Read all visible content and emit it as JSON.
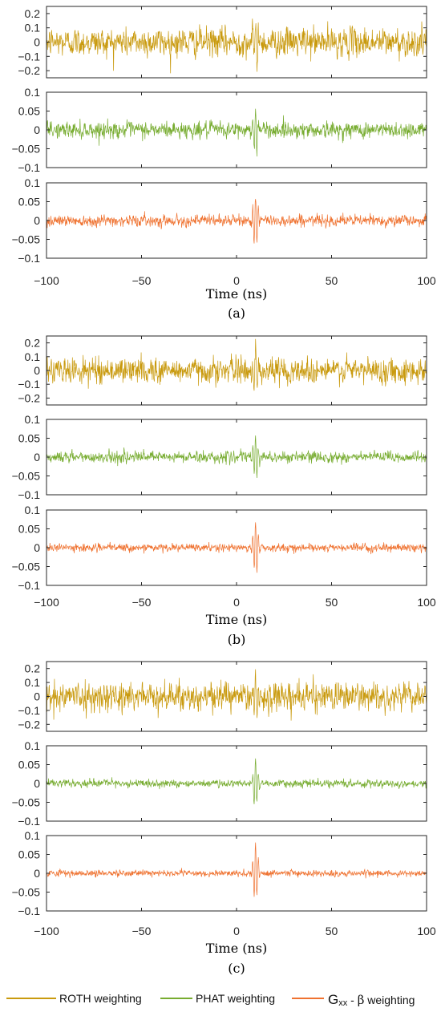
{
  "colors": {
    "roth": "#C99A0E",
    "phat": "#77AC30",
    "gxx": "#EF7230",
    "axis": "#262626",
    "background": "#FFFFFF"
  },
  "legend": {
    "roth_label": "ROTH weighting",
    "phat_label": "PHAT weighting",
    "gxx_main": "G",
    "gxx_sub": "xx",
    "gxx_dash": " - ",
    "gxx_beta": "β",
    "gxx_tail": " weighting"
  },
  "chart_data": [
    {
      "type": "line",
      "group": "(a)",
      "caption": "(a)",
      "xlabel": "Time (ns)",
      "xlim": [
        -100,
        100
      ],
      "xticks": [
        -100,
        -50,
        0,
        50,
        100
      ],
      "xtick_labels": [
        "−100",
        "−50",
        "0",
        "50",
        "100"
      ],
      "peak_x": 10,
      "panels": [
        {
          "series": "ROTH weighting",
          "color": "#C99A0E",
          "ylim": [
            -0.25,
            0.25
          ],
          "yticks": [
            -0.2,
            -0.1,
            0,
            0.1,
            0.2
          ],
          "ytick_labels": [
            "−0.2",
            "−0.1",
            "0",
            "0.1",
            "0.2"
          ],
          "noise_amplitude": 0.06,
          "peak": 0.18
        },
        {
          "series": "PHAT weighting",
          "color": "#77AC30",
          "ylim": [
            -0.1,
            0.1
          ],
          "yticks": [
            -0.1,
            -0.05,
            0,
            0.05,
            0.1
          ],
          "ytick_labels": [
            "−0.1",
            "−0.05",
            "0",
            "0.05",
            "0.1"
          ],
          "noise_amplitude": 0.013,
          "peak": 0.065
        },
        {
          "series": "Gxx - β weighting",
          "color": "#EF7230",
          "ylim": [
            -0.1,
            0.1
          ],
          "yticks": [
            -0.1,
            -0.05,
            0,
            0.05,
            0.1
          ],
          "ytick_labels": [
            "−0.1",
            "−0.05",
            "0",
            "0.05",
            "0.1"
          ],
          "noise_amplitude": 0.009,
          "peak": 0.075
        }
      ]
    },
    {
      "type": "line",
      "group": "(b)",
      "caption": "(b)",
      "xlabel": "Time (ns)",
      "xlim": [
        -100,
        100
      ],
      "xticks": [
        -100,
        -50,
        0,
        50,
        100
      ],
      "xtick_labels": [
        "−100",
        "−50",
        "0",
        "50",
        "100"
      ],
      "peak_x": 10,
      "panels": [
        {
          "series": "ROTH weighting",
          "color": "#C99A0E",
          "ylim": [
            -0.25,
            0.25
          ],
          "yticks": [
            -0.2,
            -0.1,
            0,
            0.1,
            0.2
          ],
          "ytick_labels": [
            "−0.2",
            "−0.1",
            "0",
            "0.1",
            "0.2"
          ],
          "noise_amplitude": 0.055,
          "peak": 0.17
        },
        {
          "series": "PHAT weighting",
          "color": "#77AC30",
          "ylim": [
            -0.1,
            0.1
          ],
          "yticks": [
            -0.1,
            -0.05,
            0,
            0.05,
            0.1
          ],
          "ytick_labels": [
            "−0.1",
            "−0.05",
            "0",
            "0.05",
            "0.1"
          ],
          "noise_amplitude": 0.009,
          "peak": 0.062
        },
        {
          "series": "Gxx - β weighting",
          "color": "#EF7230",
          "ylim": [
            -0.1,
            0.1
          ],
          "yticks": [
            -0.1,
            -0.05,
            0,
            0.05,
            0.1
          ],
          "ytick_labels": [
            "−0.1",
            "−0.05",
            "0",
            "0.05",
            "0.1"
          ],
          "noise_amplitude": 0.006,
          "peak": 0.075
        }
      ]
    },
    {
      "type": "line",
      "group": "(c)",
      "caption": "(c)",
      "xlabel": "Time (ns)",
      "xlim": [
        -100,
        100
      ],
      "xticks": [
        -100,
        -50,
        0,
        50,
        100
      ],
      "xtick_labels": [
        "−100",
        "−50",
        "0",
        "50",
        "100"
      ],
      "peak_x": 10,
      "panels": [
        {
          "series": "ROTH weighting",
          "color": "#C99A0E",
          "ylim": [
            -0.25,
            0.25
          ],
          "yticks": [
            -0.2,
            -0.1,
            0,
            0.1,
            0.2
          ],
          "ytick_labels": [
            "−0.2",
            "−0.1",
            "0",
            "0.1",
            "0.2"
          ],
          "noise_amplitude": 0.06,
          "peak": 0.17
        },
        {
          "series": "PHAT weighting",
          "color": "#77AC30",
          "ylim": [
            -0.1,
            0.1
          ],
          "yticks": [
            -0.1,
            -0.05,
            0,
            0.05,
            0.1
          ],
          "ytick_labels": [
            "−0.1",
            "−0.05",
            "0",
            "0.05",
            "0.1"
          ],
          "noise_amplitude": 0.006,
          "peak": 0.062
        },
        {
          "series": "Gxx - β weighting",
          "color": "#EF7230",
          "ylim": [
            -0.1,
            0.1
          ],
          "yticks": [
            -0.1,
            -0.05,
            0,
            0.05,
            0.1
          ],
          "ytick_labels": [
            "−0.1",
            "−0.05",
            "0",
            "0.05",
            "0.1"
          ],
          "noise_amplitude": 0.005,
          "peak": 0.078
        }
      ]
    }
  ]
}
